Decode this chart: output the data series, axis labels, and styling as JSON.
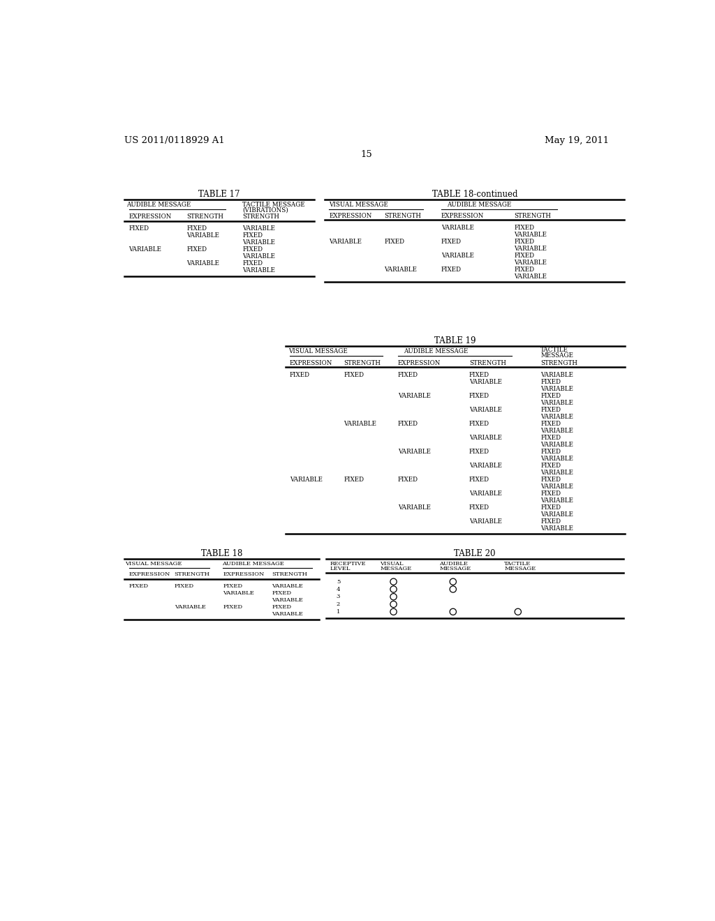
{
  "page_header_left": "US 2011/0118929 A1",
  "page_header_right": "May 19, 2011",
  "page_number": "15",
  "background_color": "#ffffff",
  "text_color": "#000000",
  "fs": 6.8,
  "fs_title": 8.5,
  "fs_header": 9.5
}
